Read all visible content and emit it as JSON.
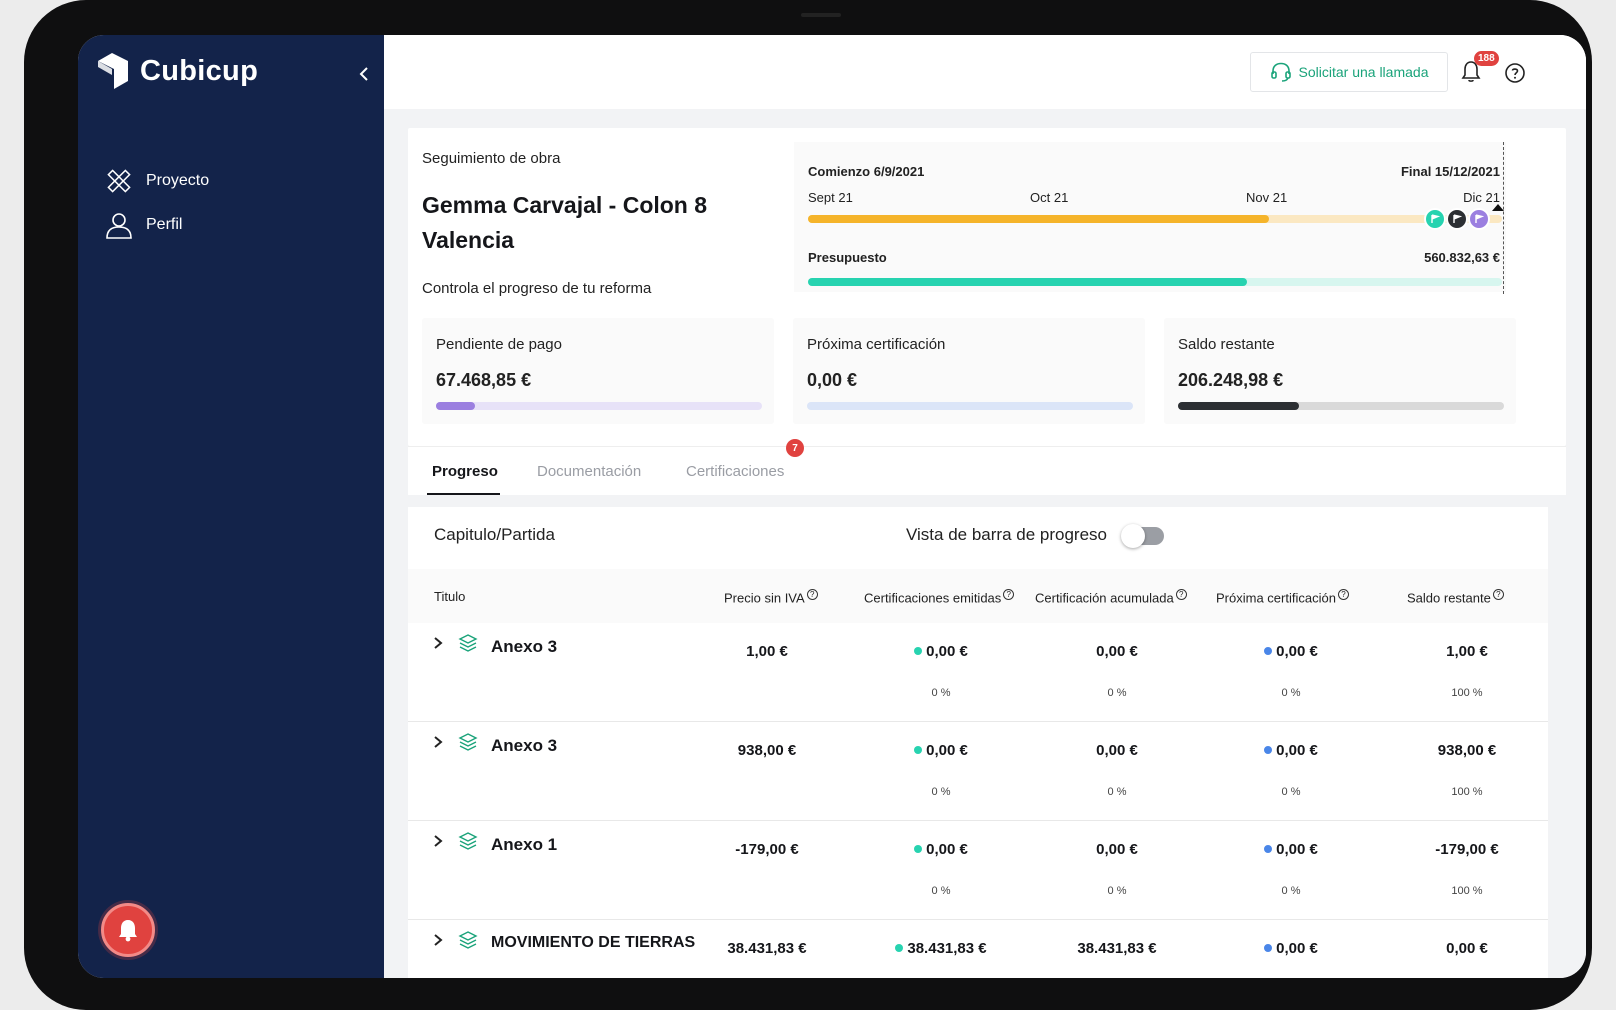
{
  "app": {
    "name": "Cubicup"
  },
  "sidebar": {
    "items": [
      {
        "label": "Proyecto",
        "icon": "tools-icon"
      },
      {
        "label": "Perfil",
        "icon": "user-icon"
      }
    ]
  },
  "topbar": {
    "call_label": "Solicitar una llamada",
    "notification_count": "188"
  },
  "project": {
    "subtitle": "Seguimiento de obra",
    "name": "Gemma Carvajal - Colon 8 Valencia",
    "description": "Controla el progreso de tu reforma"
  },
  "timeline": {
    "start": "Comienzo 6/9/2021",
    "end": "Final 15/12/2021",
    "months": [
      "Sept 21",
      "Oct 21",
      "Nov 21",
      "Dic 21"
    ],
    "time_progress": 0.664,
    "budget_label": "Presupuesto",
    "budget_value": "560.832,63 €",
    "budget_progress": 0.633
  },
  "stats": [
    {
      "title": "Pendiente de pago",
      "value": "67.468,85 €",
      "progress": 0.12,
      "color": "#9b7fe0",
      "track": "#e7e2f8"
    },
    {
      "title": "Próxima certificación",
      "value": "0,00 €",
      "progress": 0.0,
      "color": "#6f95e8",
      "track": "#dbe5f8"
    },
    {
      "title": "Saldo restante",
      "value": "206.248,98 €",
      "progress": 0.37,
      "color": "#2c2f33",
      "track": "#d9d9d9"
    }
  ],
  "tabs": [
    {
      "label": "Progreso",
      "active": true
    },
    {
      "label": "Documentación",
      "active": false
    },
    {
      "label": "Certificaciones",
      "active": false,
      "badge": "7"
    }
  ],
  "table": {
    "title": "Capitulo/Partida",
    "toggle_label": "Vista de barra de progreso",
    "columns": [
      "Titulo",
      "Precio sin IVA",
      "Certificaciones emitidas",
      "Certificación acumulada",
      "Próxima certificación",
      "Saldo restante"
    ],
    "rows": [
      {
        "name": "Anexo 3",
        "precio": "1,00 €",
        "emitidas": "0,00 €",
        "emitidas_pct": "0 %",
        "acumulada": "0,00 €",
        "acumulada_pct": "0 %",
        "proxima": "0,00 €",
        "proxima_pct": "0 %",
        "saldo": "1,00 €",
        "saldo_pct": "100 %"
      },
      {
        "name": "Anexo 3",
        "precio": "938,00 €",
        "emitidas": "0,00 €",
        "emitidas_pct": "0 %",
        "acumulada": "0,00 €",
        "acumulada_pct": "0 %",
        "proxima": "0,00 €",
        "proxima_pct": "0 %",
        "saldo": "938,00 €",
        "saldo_pct": "100 %"
      },
      {
        "name": "Anexo 1",
        "precio": "-179,00 €",
        "emitidas": "0,00 €",
        "emitidas_pct": "0 %",
        "acumulada": "0,00 €",
        "acumulada_pct": "0 %",
        "proxima": "0,00 €",
        "proxima_pct": "0 %",
        "saldo": "-179,00 €",
        "saldo_pct": "100 %"
      },
      {
        "name": "MOVIMIENTO DE TIERRAS",
        "precio": "38.431,83 €",
        "emitidas": "38.431,83 €",
        "emitidas_pct": "",
        "acumulada": "38.431,83 €",
        "acumulada_pct": "",
        "proxima": "0,00 €",
        "proxima_pct": "",
        "saldo": "0,00 €",
        "saldo_pct": ""
      }
    ]
  },
  "colors": {
    "sidebar": "#13234a",
    "accent_green": "#1aa37a",
    "timeline_orange": "#f5b42a",
    "budget_teal": "#27d3b0",
    "badge_red": "#e0423f"
  }
}
